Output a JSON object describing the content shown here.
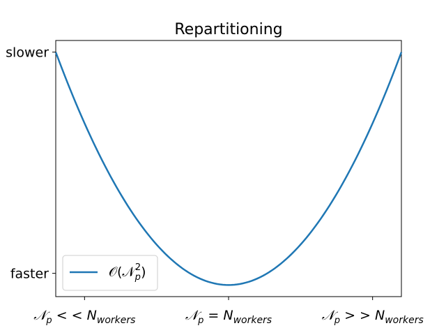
{
  "chart_data": {
    "type": "line",
    "title": "Repartitioning",
    "xlabel": "",
    "ylabel": "",
    "x_ticks": [
      {
        "pos": -1,
        "label": "𝒩p < < N",
        "sub": "workers",
        "sup_p": true
      },
      {
        "pos": 0,
        "label": "𝒩p = N",
        "sub": "workers",
        "sup_p": true
      },
      {
        "pos": 1,
        "label": "𝒩p > > N",
        "sub": "workers",
        "sup_p": true
      }
    ],
    "x_tick_texts": [
      "𝒩p<<Nworkers",
      "𝒩p=Nworkers",
      "𝒩p>>Nworkers"
    ],
    "y_ticks": [
      {
        "pos": 0.05,
        "label": "faster"
      },
      {
        "pos": 1.0,
        "label": "slower"
      }
    ],
    "xlim": [
      -1.2,
      1.2
    ],
    "ylim": [
      -0.05,
      1.05
    ],
    "series": [
      {
        "name": "𝒪(𝒩p²)",
        "color": "#1f77b4",
        "x": [
          -1.2,
          -1.0,
          -0.8,
          -0.6,
          -0.4,
          -0.2,
          0.0,
          0.2,
          0.4,
          0.6,
          0.8,
          1.0,
          1.2
        ],
        "y": [
          1.0,
          0.694,
          0.444,
          0.25,
          0.111,
          0.028,
          0.0,
          0.028,
          0.111,
          0.25,
          0.444,
          0.694,
          1.0
        ]
      }
    ],
    "legend": {
      "location": "lower-left",
      "entries": [
        "𝒪(𝒩p²)"
      ]
    },
    "grid": false
  }
}
